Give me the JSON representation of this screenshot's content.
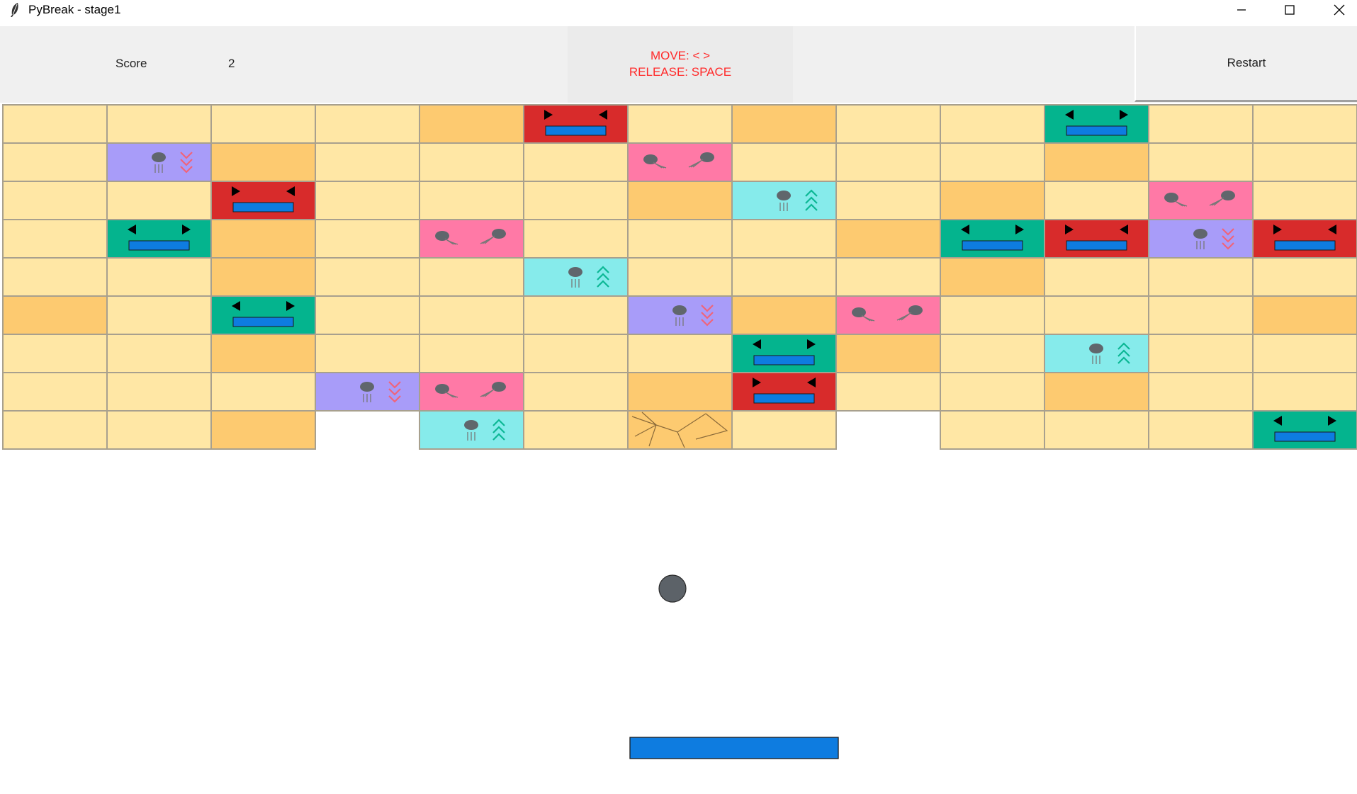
{
  "window": {
    "title": "PyBreak - stage1",
    "controls": [
      "minimize-icon",
      "maximize-icon",
      "close-icon"
    ]
  },
  "header": {
    "score_label": "Score",
    "score_value": "2",
    "help_move": "MOVE:  <  >",
    "help_release": "RELEASE:  SPACE",
    "restart_label": "Restart"
  },
  "colors": {
    "plain": "#ffe7a5",
    "orange": "#fdca70",
    "red": "#d82b2b",
    "teal": "#04b48e",
    "pink": "#ff79a6",
    "cyan": "#86ebeb",
    "purple": "#a89cf9",
    "paddle": "#0e7ce0",
    "ball": "#5c6268",
    "arrow": "#000000",
    "chevron_down": "#f0647a",
    "chevron_up": "#0bb794"
  },
  "bricks": [
    [
      "plain",
      "plain",
      "plain",
      "plain",
      "orange",
      "red",
      "plain",
      "orange",
      "plain",
      "plain",
      "teal",
      "plain",
      "plain"
    ],
    [
      "plain",
      "purple",
      "orange",
      "plain",
      "plain",
      "plain",
      "pink",
      "plain",
      "plain",
      "plain",
      "orange",
      "plain",
      "plain"
    ],
    [
      "plain",
      "plain",
      "red",
      "plain",
      "plain",
      "plain",
      "orange",
      "cyan",
      "plain",
      "orange",
      "plain",
      "pink",
      "plain"
    ],
    [
      "plain",
      "teal",
      "orange",
      "plain",
      "pink",
      "plain",
      "plain",
      "plain",
      "orange",
      "teal",
      "red",
      "purple",
      "red"
    ],
    [
      "plain",
      "plain",
      "orange",
      "plain",
      "plain",
      "cyan",
      "plain",
      "plain",
      "plain",
      "orange",
      "plain",
      "plain",
      "plain"
    ],
    [
      "orange",
      "plain",
      "teal",
      "plain",
      "plain",
      "plain",
      "purple",
      "orange",
      "pink",
      "plain",
      "plain",
      "plain",
      "orange"
    ],
    [
      "plain",
      "plain",
      "orange",
      "plain",
      "plain",
      "plain",
      "plain",
      "teal",
      "orange",
      "plain",
      "cyan",
      "plain",
      "plain"
    ],
    [
      "plain",
      "plain",
      "plain",
      "purple",
      "pink",
      "plain",
      "orange",
      "red",
      "plain",
      "plain",
      "orange",
      "plain",
      "plain"
    ],
    [
      "plain",
      "plain",
      "orange",
      "none",
      "cyan",
      "plain",
      "cracked",
      "plain",
      "none",
      "plain",
      "plain",
      "plain",
      "teal"
    ]
  ],
  "brick_types": {
    "plain": "plain brick",
    "orange": "hard brick",
    "cracked": "cracked brick",
    "red": "shrink paddle",
    "teal": "expand paddle",
    "pink": "split ball",
    "cyan": "speed up ball",
    "purple": "slow down ball"
  }
}
